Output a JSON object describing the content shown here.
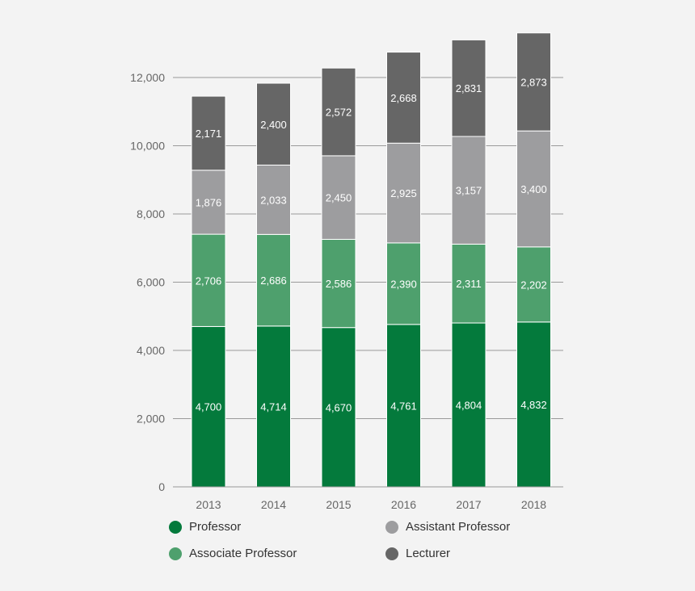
{
  "chart_data": {
    "type": "bar",
    "stacked": true,
    "title": "",
    "xlabel": "",
    "ylabel": "",
    "categories": [
      "2013",
      "2014",
      "2015",
      "2016",
      "2017",
      "2018"
    ],
    "series": [
      {
        "name": "Professor",
        "color": "#047a3c",
        "values": [
          4700,
          4714,
          4670,
          4761,
          4804,
          4832
        ],
        "labels": [
          "4,700",
          "4,714",
          "4,670",
          "4,761",
          "4,804",
          "4,832"
        ]
      },
      {
        "name": "Associate Professor",
        "color": "#4ea06d",
        "values": [
          2706,
          2686,
          2586,
          2390,
          2311,
          2202
        ],
        "labels": [
          "2,706",
          "2,686",
          "2,586",
          "2,390",
          "2,311",
          "2,202"
        ]
      },
      {
        "name": "Assistant Professor",
        "color": "#9d9d9f",
        "values": [
          1876,
          2033,
          2450,
          2925,
          3157,
          3400
        ],
        "labels": [
          "1,876",
          "2,033",
          "2,450",
          "2,925",
          "3,157",
          "3,400"
        ]
      },
      {
        "name": "Lecturer",
        "color": "#666666",
        "values": [
          2171,
          2400,
          2572,
          2668,
          2831,
          2873
        ],
        "labels": [
          "2,171",
          "2,400",
          "2,572",
          "2,668",
          "2,831",
          "2,873"
        ]
      }
    ],
    "y_ticks": [
      0,
      2000,
      4000,
      6000,
      8000,
      10000,
      12000
    ],
    "y_tick_labels": [
      "0",
      "2,000",
      "4,000",
      "6,000",
      "8,000",
      "10,000",
      "12,000"
    ],
    "ylim": [
      0,
      13300
    ],
    "grid": true,
    "legend_position": "bottom"
  }
}
